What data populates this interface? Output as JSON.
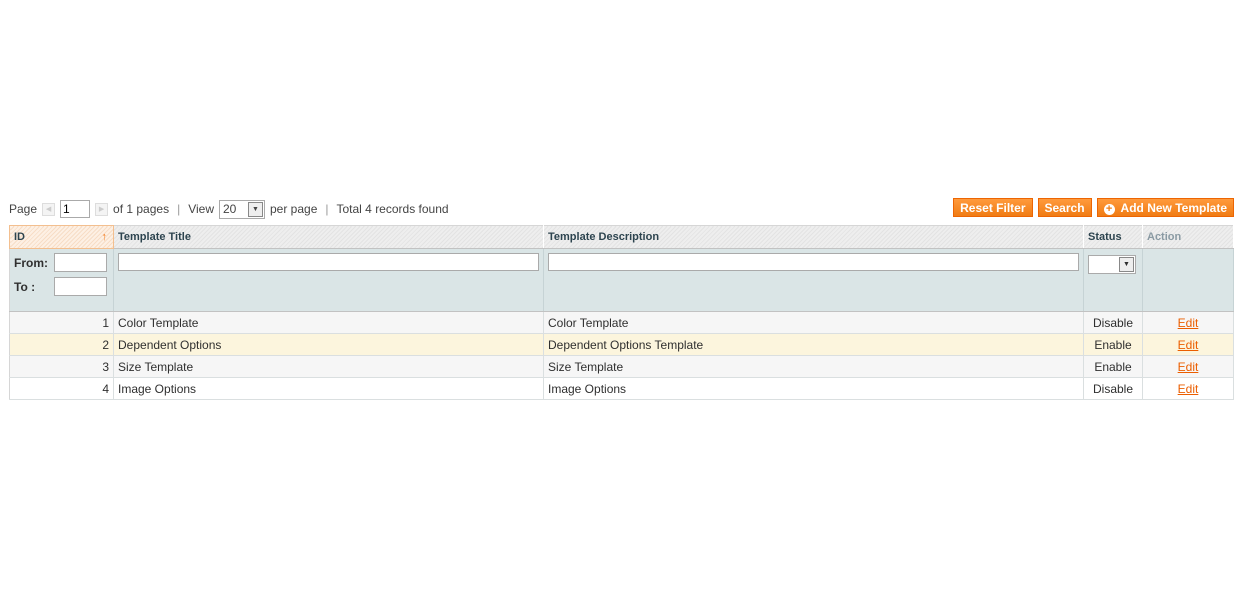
{
  "pager": {
    "page_label": "Page",
    "page_value": "1",
    "of_pages": "of 1 pages",
    "view_label": "View",
    "per_page_value": "20",
    "per_page_label": "per page",
    "total": "Total 4 records found"
  },
  "buttons": {
    "reset": "Reset Filter",
    "search": "Search",
    "add": "Add New Template"
  },
  "columns": {
    "id": "ID",
    "title": "Template Title",
    "description": "Template Description",
    "status": "Status",
    "action": "Action"
  },
  "filter": {
    "from": "From:",
    "to": "To :"
  },
  "rows": [
    {
      "id": "1",
      "title": "Color Template",
      "description": "Color Template",
      "status": "Disable",
      "action": "Edit"
    },
    {
      "id": "2",
      "title": "Dependent Options",
      "description": "Dependent Options Template",
      "status": "Enable",
      "action": "Edit"
    },
    {
      "id": "3",
      "title": "Size Template",
      "description": "Size Template",
      "status": "Enable",
      "action": "Edit"
    },
    {
      "id": "4",
      "title": "Image Options",
      "description": "Image Options",
      "status": "Disable",
      "action": "Edit"
    }
  ],
  "colors": {
    "accent": "#f07c14",
    "link": "#eb5e00",
    "filter_bg": "#dae5e6",
    "highlight_row": "#fcf5dd"
  }
}
